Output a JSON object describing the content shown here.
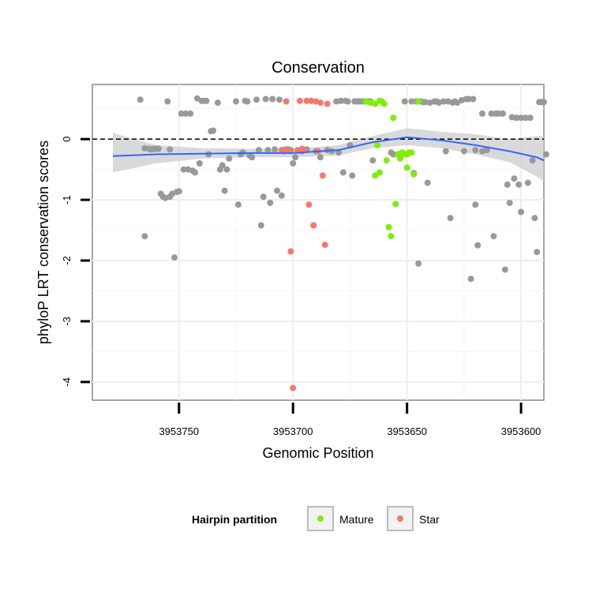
{
  "chart_data": {
    "type": "scatter",
    "title": "Conservation",
    "xlabel": "Genomic Position",
    "ylabel": "phyloP LRT conservation scores",
    "x_reversed": true,
    "xlim": [
      3953788,
      3953590
    ],
    "ylim": [
      -4.3,
      0.9
    ],
    "x_ticks": [
      3953750,
      3953700,
      3953650,
      3953600
    ],
    "x_tick_labels": [
      "3953750",
      "3953700",
      "3953650",
      "3953600"
    ],
    "y_ticks": [
      0,
      -1,
      -2,
      -3,
      -4
    ],
    "y_tick_labels": [
      "0",
      "-1",
      "-2",
      "-3",
      "-4"
    ],
    "reference_line": {
      "y": 0,
      "style": "dashed"
    },
    "grid": true,
    "legend_title": "Hairpin partition",
    "legend_position": "bottom",
    "series": [
      {
        "name": "",
        "color": "#999999",
        "points": [
          [
            3953767,
            0.65
          ],
          [
            3953765,
            -0.15
          ],
          [
            3953765,
            -1.6
          ],
          [
            3953763,
            -0.16
          ],
          [
            3953762,
            -0.17
          ],
          [
            3953761,
            -0.16
          ],
          [
            3953760,
            -0.16
          ],
          [
            3953759,
            -0.16
          ],
          [
            3953758,
            -0.9
          ],
          [
            3953757,
            -0.95
          ],
          [
            3953756,
            -0.97
          ],
          [
            3953755,
            0.62
          ],
          [
            3953754,
            -0.17
          ],
          [
            3953754,
            -0.95
          ],
          [
            3953753,
            -0.9
          ],
          [
            3953752,
            -1.95
          ],
          [
            3953751,
            -0.87
          ],
          [
            3953750,
            -0.86
          ],
          [
            3953749,
            0.42
          ],
          [
            3953748,
            -0.5
          ],
          [
            3953747,
            0.42
          ],
          [
            3953746,
            -0.5
          ],
          [
            3953745,
            0.42
          ],
          [
            3953744,
            -0.52
          ],
          [
            3953743,
            -0.55
          ],
          [
            3953742,
            0.67
          ],
          [
            3953741,
            -0.4
          ],
          [
            3953740,
            0.63
          ],
          [
            3953739,
            0.63
          ],
          [
            3953738,
            0.63
          ],
          [
            3953737,
            -0.25
          ],
          [
            3953736,
            0.13
          ],
          [
            3953735,
            0.14
          ],
          [
            3953733,
            0.6
          ],
          [
            3953732,
            -0.5
          ],
          [
            3953731,
            -0.43
          ],
          [
            3953730,
            -0.85
          ],
          [
            3953729,
            -0.5
          ],
          [
            3953728,
            -0.32
          ],
          [
            3953725,
            0.62
          ],
          [
            3953724,
            -1.08
          ],
          [
            3953723,
            -0.25
          ],
          [
            3953722,
            -0.22
          ],
          [
            3953721,
            0.63
          ],
          [
            3953720,
            0.62
          ],
          [
            3953719,
            -0.27
          ],
          [
            3953718,
            -0.3
          ],
          [
            3953716,
            0.65
          ],
          [
            3953715,
            -0.18
          ],
          [
            3953714,
            -1.42
          ],
          [
            3953713,
            -0.95
          ],
          [
            3953712,
            0.66
          ],
          [
            3953711,
            -0.18
          ],
          [
            3953710,
            -1.05
          ],
          [
            3953709,
            0.66
          ],
          [
            3953708,
            -0.17
          ],
          [
            3953707,
            -0.85
          ],
          [
            3953706,
            0.65
          ],
          [
            3953705,
            -0.93
          ],
          [
            3953704,
            -0.18
          ],
          [
            3953703,
            -0.17
          ],
          [
            3953702,
            -0.17
          ],
          [
            3953701,
            -0.18
          ],
          [
            3953700,
            -0.4
          ],
          [
            3953699,
            -0.3
          ],
          [
            3953696,
            -0.2
          ],
          [
            3953694,
            -0.17
          ],
          [
            3953690,
            -0.2
          ],
          [
            3953688,
            -0.3
          ],
          [
            3953685,
            -0.18
          ],
          [
            3953683,
            -0.2
          ],
          [
            3953681,
            0.62
          ],
          [
            3953680,
            -0.22
          ],
          [
            3953679,
            0.63
          ],
          [
            3953678,
            -0.55
          ],
          [
            3953677,
            0.63
          ],
          [
            3953676,
            0.62
          ],
          [
            3953675,
            -0.1
          ],
          [
            3953674,
            -0.6
          ],
          [
            3953673,
            0.62
          ],
          [
            3953672,
            0.62
          ],
          [
            3953671,
            0.62
          ],
          [
            3953670,
            0.62
          ],
          [
            3953669,
            0.62
          ],
          [
            3953667,
            0.62
          ],
          [
            3953666,
            0.62
          ],
          [
            3953665,
            -0.35
          ],
          [
            3953657,
            -0.22
          ],
          [
            3953656,
            -0.25
          ],
          [
            3953653,
            -0.24
          ],
          [
            3953651,
            0.62
          ],
          [
            3953648,
            0.62
          ],
          [
            3953647,
            -0.56
          ],
          [
            3953646,
            0.62
          ],
          [
            3953645,
            -2.05
          ],
          [
            3953644,
            0.62
          ],
          [
            3953643,
            0.61
          ],
          [
            3953642,
            0.61
          ],
          [
            3953641,
            -0.72
          ],
          [
            3953640,
            0.6
          ],
          [
            3953638,
            0.62
          ],
          [
            3953637,
            0.62
          ],
          [
            3953636,
            0.6
          ],
          [
            3953634,
            0.62
          ],
          [
            3953633,
            -0.2
          ],
          [
            3953632,
            0.62
          ],
          [
            3953631,
            -1.3
          ],
          [
            3953630,
            0.6
          ],
          [
            3953629,
            0.62
          ],
          [
            3953628,
            0.6
          ],
          [
            3953626,
            0.64
          ],
          [
            3953625,
            -0.2
          ],
          [
            3953624,
            0.66
          ],
          [
            3953623,
            0.66
          ],
          [
            3953622,
            -2.3
          ],
          [
            3953621,
            0.66
          ],
          [
            3953620,
            -1.08
          ],
          [
            3953620,
            -0.18
          ],
          [
            3953619,
            -1.75
          ],
          [
            3953617,
            -0.2
          ],
          [
            3953617,
            0.42
          ],
          [
            3953615,
            -0.18
          ],
          [
            3953613,
            0.42
          ],
          [
            3953612,
            -1.6
          ],
          [
            3953611,
            0.42
          ],
          [
            3953610,
            0.42
          ],
          [
            3953608,
            0.42
          ],
          [
            3953607,
            -2.15
          ],
          [
            3953606,
            -0.75
          ],
          [
            3953605,
            -1.05
          ],
          [
            3953604,
            0.36
          ],
          [
            3953603,
            -0.65
          ],
          [
            3953602,
            0.35
          ],
          [
            3953601,
            -0.75
          ],
          [
            3953600,
            0.35
          ],
          [
            3953600,
            -1.2
          ],
          [
            3953598,
            0.35
          ],
          [
            3953597,
            -0.72
          ],
          [
            3953596,
            0.35
          ],
          [
            3953595,
            -0.35
          ],
          [
            3953594,
            -1.3
          ],
          [
            3953593,
            -1.86
          ],
          [
            3953592,
            0.61
          ],
          [
            3953591,
            0.61
          ],
          [
            3953590,
            0.61
          ],
          [
            3953589,
            -0.25
          ]
        ]
      },
      {
        "name": "Mature",
        "color": "#7cf000",
        "points": [
          [
            3953668,
            0.62
          ],
          [
            3953666,
            0.6
          ],
          [
            3953664,
            0.58
          ],
          [
            3953663,
            -0.1
          ],
          [
            3953662,
            0.63
          ],
          [
            3953661,
            0.62
          ],
          [
            3953660,
            0.58
          ],
          [
            3953659,
            -0.35
          ],
          [
            3953658,
            -1.45
          ],
          [
            3953657,
            -1.6
          ],
          [
            3953656,
            0.35
          ],
          [
            3953655,
            -1.07
          ],
          [
            3953654,
            -0.25
          ],
          [
            3953653,
            -0.32
          ],
          [
            3953652,
            -0.22
          ],
          [
            3953651,
            -0.25
          ],
          [
            3953650,
            -0.47
          ],
          [
            3953649,
            -0.22
          ],
          [
            3953648,
            -0.22
          ],
          [
            3953647,
            -0.58
          ],
          [
            3953645,
            0.62
          ],
          [
            3953664,
            -0.6
          ],
          [
            3953662,
            -0.55
          ],
          [
            3953650,
            -0.25
          ]
        ]
      },
      {
        "name": "Star",
        "color": "#f8766d",
        "points": [
          [
            3953705,
            -0.18
          ],
          [
            3953704,
            -0.2
          ],
          [
            3953703,
            0.62
          ],
          [
            3953702,
            -0.18
          ],
          [
            3953701,
            -1.85
          ],
          [
            3953700,
            -4.1
          ],
          [
            3953698,
            -0.18
          ],
          [
            3953697,
            0.63
          ],
          [
            3953696,
            -0.16
          ],
          [
            3953694,
            0.63
          ],
          [
            3953693,
            -1.08
          ],
          [
            3953692,
            0.63
          ],
          [
            3953691,
            -1.42
          ],
          [
            3953690,
            0.62
          ],
          [
            3953689,
            -0.2
          ],
          [
            3953688,
            0.6
          ],
          [
            3953687,
            -0.6
          ],
          [
            3953686,
            -1.74
          ],
          [
            3953685,
            0.58
          ],
          [
            3953695,
            -0.18
          ]
        ]
      }
    ],
    "smooth": {
      "color": "#3366ff",
      "band_color": "#cccccc",
      "points": [
        [
          3953779,
          -0.28,
          -0.55,
          0.1
        ],
        [
          3953760,
          -0.25,
          -0.4,
          -0.1
        ],
        [
          3953740,
          -0.24,
          -0.32,
          -0.15
        ],
        [
          3953720,
          -0.23,
          -0.3,
          -0.16
        ],
        [
          3953700,
          -0.23,
          -0.3,
          -0.16
        ],
        [
          3953680,
          -0.18,
          -0.27,
          -0.1
        ],
        [
          3953665,
          -0.05,
          -0.15,
          0.05
        ],
        [
          3953650,
          0.03,
          -0.1,
          0.18
        ],
        [
          3953635,
          -0.02,
          -0.15,
          0.12
        ],
        [
          3953620,
          -0.1,
          -0.25,
          0.08
        ],
        [
          3953605,
          -0.2,
          -0.38,
          0.0
        ],
        [
          3953593,
          -0.3,
          -0.62,
          0.05
        ],
        [
          3953590,
          -0.35,
          -0.7,
          0.05
        ]
      ]
    }
  }
}
